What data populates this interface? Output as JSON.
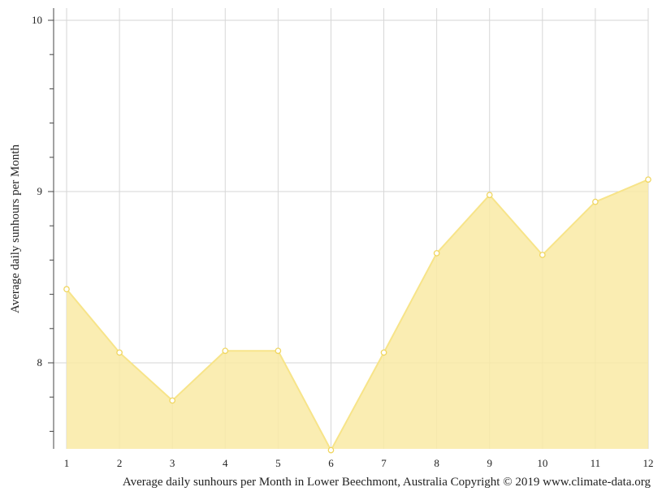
{
  "chart_data": {
    "type": "area",
    "x": [
      1,
      2,
      3,
      4,
      5,
      6,
      7,
      8,
      9,
      10,
      11,
      12
    ],
    "series": [
      {
        "values": [
          8.43,
          8.06,
          7.78,
          8.07,
          8.07,
          7.49,
          8.06,
          8.64,
          8.98,
          8.63,
          8.94,
          9.07
        ]
      }
    ],
    "ylabel": "Average daily sunhours per Month",
    "xlabel": "",
    "xticks": [
      "1",
      "2",
      "3",
      "4",
      "5",
      "6",
      "7",
      "8",
      "9",
      "10",
      "11",
      "12"
    ],
    "yticks": [
      "8",
      "9",
      "10"
    ],
    "ylim": [
      7.49,
      10.07
    ],
    "xlim": [
      1,
      12
    ],
    "grid": true,
    "colors": {
      "fill": "#f9eaa4",
      "line": "#f7e489",
      "marker_fill": "#ffffff",
      "marker_stroke": "#f0d660",
      "grid": "#d6d6d6",
      "axis": "#444444"
    }
  },
  "caption": "Average daily sunhours per Month in Lower Beechmont, Australia Copyright © 2019 www.climate-data.org"
}
